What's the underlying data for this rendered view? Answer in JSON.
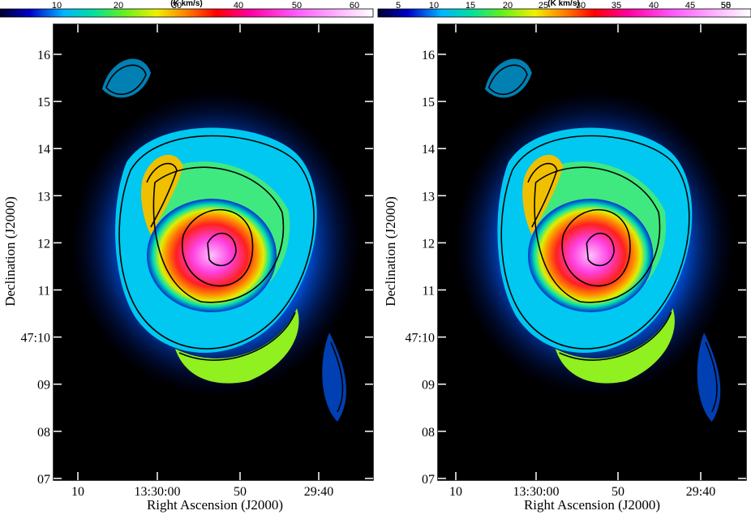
{
  "panels": [
    {
      "colorbar": {
        "unit": "(K km/s)",
        "ticks": [
          "10",
          "20",
          "30",
          "40",
          "50",
          "60"
        ]
      },
      "x_axis": {
        "label": "Right Ascension (J2000)",
        "ticks": [
          "10",
          "13:30:00",
          "50",
          "29:40"
        ]
      },
      "y_axis": {
        "label": "Declination (J2000)",
        "ticks": [
          "16",
          "15",
          "14",
          "13",
          "12",
          "11",
          "47:10",
          "09",
          "08",
          "07"
        ]
      }
    },
    {
      "colorbar": {
        "unit": "(K km/s)",
        "ticks": [
          "5",
          "10",
          "15",
          "20",
          "25",
          "30",
          "35",
          "40",
          "45",
          "50",
          "55"
        ]
      },
      "x_axis": {
        "label": "Right Ascension (J2000)",
        "ticks": [
          "10",
          "13:30:00",
          "50",
          "29:40"
        ]
      },
      "y_axis": {
        "label": "Declination (J2000)",
        "ticks": [
          "16",
          "15",
          "14",
          "13",
          "12",
          "11",
          "47:10",
          "09",
          "08",
          "07"
        ]
      }
    }
  ]
}
